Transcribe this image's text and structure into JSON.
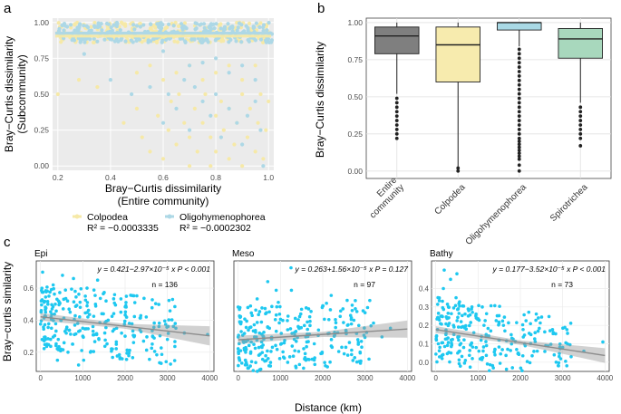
{
  "chart_data": [
    {
      "panel": "a",
      "type": "scatter",
      "xlabel": "Bray−Curtis dissimilarity",
      "xlabel2": "(Entire community)",
      "ylabel": "Bray−Curtis dissimilarity",
      "ylabel2": "(Subcommunity)",
      "xlim": [
        0.18,
        1.02
      ],
      "ylim": [
        -0.03,
        1.03
      ],
      "xticks": [
        "0.2",
        "0.4",
        "0.6",
        "0.8",
        "1.0"
      ],
      "yticks": [
        "0.00",
        "0.25",
        "0.50",
        "0.75",
        "1.00"
      ],
      "grid": true,
      "series": [
        {
          "name": "Colpodea",
          "r2": "R² = −0.0003335",
          "color": "#f6e9a7",
          "fit_y": 0.905
        },
        {
          "name": "Oligohymenophorea",
          "r2": "R² = −0.0002302",
          "color": "#add8e6",
          "fit_y": 0.925
        }
      ],
      "points": {
        "Colpodea": [
          [
            0.2,
            0.5
          ],
          [
            0.28,
            0.6
          ],
          [
            0.35,
            0.55
          ],
          [
            0.45,
            0.3
          ],
          [
            0.5,
            0.4
          ],
          [
            0.52,
            0.2
          ],
          [
            0.55,
            0.1
          ],
          [
            0.58,
            0.35
          ],
          [
            0.6,
            0.05
          ],
          [
            0.62,
            0.25
          ],
          [
            0.63,
            0.45
          ],
          [
            0.65,
            0.15
          ],
          [
            0.66,
            0.5
          ],
          [
            0.68,
            0.3
          ],
          [
            0.7,
            0.0
          ],
          [
            0.7,
            0.2
          ],
          [
            0.72,
            0.4
          ],
          [
            0.73,
            0.1
          ],
          [
            0.75,
            0.3
          ],
          [
            0.76,
            0.5
          ],
          [
            0.78,
            0.2
          ],
          [
            0.78,
            0.0
          ],
          [
            0.8,
            0.35
          ],
          [
            0.8,
            0.1
          ],
          [
            0.82,
            0.45
          ],
          [
            0.83,
            0.25
          ],
          [
            0.85,
            0.05
          ],
          [
            0.85,
            0.4
          ],
          [
            0.87,
            0.15
          ],
          [
            0.88,
            0.3
          ],
          [
            0.9,
            0.5
          ],
          [
            0.9,
            0.0
          ],
          [
            0.92,
            0.2
          ],
          [
            0.93,
            0.4
          ],
          [
            0.95,
            0.1
          ],
          [
            0.96,
            0.3
          ],
          [
            0.97,
            0.5
          ],
          [
            0.98,
            0.05
          ],
          [
            0.99,
            0.25
          ],
          [
            1.0,
            0.45
          ],
          [
            0.6,
            0.6
          ],
          [
            0.65,
            0.65
          ],
          [
            0.7,
            0.7
          ],
          [
            0.75,
            0.6
          ],
          [
            0.8,
            0.65
          ],
          [
            0.85,
            0.7
          ],
          [
            0.9,
            0.6
          ],
          [
            0.95,
            0.7
          ],
          [
            0.55,
            0.7
          ],
          [
            0.5,
            0.65
          ]
        ],
        "Oligohymenophorea": [
          [
            0.3,
            0.78
          ],
          [
            0.4,
            0.6
          ],
          [
            0.48,
            0.5
          ],
          [
            0.55,
            0.55
          ],
          [
            0.6,
            0.3
          ],
          [
            0.62,
            0.5
          ],
          [
            0.65,
            0.4
          ],
          [
            0.68,
            0.6
          ],
          [
            0.7,
            0.25
          ],
          [
            0.72,
            0.55
          ],
          [
            0.75,
            0.45
          ],
          [
            0.78,
            0.35
          ],
          [
            0.8,
            0.5
          ],
          [
            0.82,
            0.2
          ],
          [
            0.85,
            0.4
          ],
          [
            0.88,
            0.3
          ],
          [
            0.9,
            0.15
          ],
          [
            0.92,
            0.35
          ],
          [
            0.95,
            0.45
          ],
          [
            0.97,
            0.25
          ],
          [
            0.7,
            0.7
          ],
          [
            0.8,
            0.75
          ],
          [
            0.9,
            0.7
          ],
          [
            0.6,
            0.8
          ],
          [
            0.98,
            0.0
          ],
          [
            0.95,
            0.6
          ],
          [
            0.85,
            0.65
          ],
          [
            0.75,
            0.72
          ]
        ]
      }
    },
    {
      "panel": "b",
      "type": "box",
      "ylabel": "Bray−Curtis dissimilarity",
      "ylim": [
        -0.05,
        1.03
      ],
      "yticks": [
        "0.00",
        "0.25",
        "0.50",
        "0.75",
        "1.00"
      ],
      "categories": [
        "Entire community",
        "Colpodea",
        "Oligohymenophorea",
        "Spirotrichea"
      ],
      "category_labels": [
        [
          "Entire",
          "community"
        ],
        [
          "Colpodea"
        ],
        [
          "Oligohymenophorea"
        ],
        [
          "Spirotrichea"
        ]
      ],
      "boxes": [
        {
          "whisker_low": 0.52,
          "q1": 0.79,
          "median": 0.91,
          "q3": 0.97,
          "whisker_high": 1.0,
          "color": "#7f7f7f",
          "outliers": [
            0.22,
            0.25,
            0.28,
            0.31,
            0.34,
            0.37,
            0.4,
            0.43,
            0.46,
            0.49
          ]
        },
        {
          "whisker_low": 0.03,
          "q1": 0.6,
          "median": 0.85,
          "q3": 0.97,
          "whisker_high": 1.0,
          "color": "#f7ebae",
          "outliers": [
            0.0,
            0.02
          ]
        },
        {
          "whisker_low": 0.84,
          "q1": 0.95,
          "median": 1.0,
          "q3": 1.0,
          "whisker_high": 1.0,
          "color": "#a9d9e5",
          "outliers": [
            0.0,
            0.04,
            0.08,
            0.1,
            0.12,
            0.14,
            0.16,
            0.18,
            0.2,
            0.22,
            0.25,
            0.28,
            0.31,
            0.34,
            0.37,
            0.4,
            0.43,
            0.46,
            0.49,
            0.52,
            0.55,
            0.58,
            0.61,
            0.64,
            0.67,
            0.7,
            0.73,
            0.76,
            0.79,
            0.82
          ]
        },
        {
          "whisker_low": 0.46,
          "q1": 0.76,
          "median": 0.89,
          "q3": 0.96,
          "whisker_high": 1.0,
          "color": "#a8d8bd",
          "outliers": [
            0.17,
            0.22,
            0.25,
            0.28,
            0.31,
            0.34,
            0.37,
            0.4,
            0.43
          ]
        }
      ]
    },
    {
      "panel": "c",
      "type": "scatter",
      "xlabel": "Distance (km)",
      "ylabel": "Bray−curtis similarity",
      "point_color": "#1ec8f0",
      "line_color": "#8c8c8c",
      "facets": [
        {
          "label": "Epi",
          "equation": "y = 0.421−2.97×10⁻⁵ x",
          "p": "P < 0.001",
          "n": "n = 136",
          "xlim": [
            -100,
            4100
          ],
          "ylim": [
            0.08,
            0.77
          ],
          "xticks": [
            0,
            1000,
            2000,
            3000,
            4000
          ],
          "yticks": [
            0.2,
            0.4,
            0.6
          ],
          "fit": {
            "intercept": 0.421,
            "slope": -2.97e-05,
            "x0": 0,
            "x1": 4000
          },
          "band": [
            0.015,
            0.06
          ],
          "points": [
            [
              50,
              0.7
            ],
            [
              120,
              0.45
            ],
            [
              200,
              0.55
            ],
            [
              260,
              0.35
            ],
            [
              300,
              0.62
            ],
            [
              350,
              0.5
            ],
            [
              420,
              0.28
            ],
            [
              480,
              0.4
            ],
            [
              520,
              0.68
            ],
            [
              580,
              0.33
            ],
            [
              640,
              0.52
            ],
            [
              700,
              0.45
            ],
            [
              760,
              0.25
            ],
            [
              820,
              0.58
            ],
            [
              880,
              0.38
            ],
            [
              940,
              0.48
            ],
            [
              1000,
              0.3
            ],
            [
              1060,
              0.55
            ],
            [
              1120,
              0.42
            ],
            [
              1180,
              0.2
            ],
            [
              1240,
              0.36
            ],
            [
              1300,
              0.5
            ],
            [
              1380,
              0.28
            ],
            [
              1450,
              0.44
            ],
            [
              1520,
              0.32
            ],
            [
              1600,
              0.4
            ],
            [
              1700,
              0.22
            ],
            [
              1800,
              0.35
            ],
            [
              1900,
              0.45
            ],
            [
              2000,
              0.3
            ],
            [
              2100,
              0.38
            ],
            [
              2200,
              0.26
            ],
            [
              2350,
              0.34
            ],
            [
              2500,
              0.42
            ],
            [
              2650,
              0.3
            ],
            [
              2800,
              0.36
            ],
            [
              3000,
              0.28
            ],
            [
              3200,
              0.35
            ],
            [
              3400,
              0.32
            ],
            [
              3950,
              0.31
            ],
            [
              150,
              0.25
            ],
            [
              400,
              0.15
            ],
            [
              650,
              0.2
            ],
            [
              900,
              0.12
            ],
            [
              1100,
              0.6
            ],
            [
              1350,
              0.65
            ],
            [
              780,
              0.66
            ],
            [
              1550,
              0.52
            ],
            [
              250,
              0.42
            ],
            [
              1020,
              0.15
            ]
          ]
        },
        {
          "label": "Meso",
          "equation": "y = 0.263+1.56×10⁻⁵ x",
          "p": "P = 0.127",
          "n": "n = 97",
          "xlim": [
            -100,
            4100
          ],
          "ylim": [
            0.08,
            0.72
          ],
          "xticks": [
            0,
            1000,
            2000,
            3000,
            4000
          ],
          "yticks": [],
          "fit": {
            "intercept": 0.263,
            "slope": 1.56e-05,
            "x0": 0,
            "x1": 4000
          },
          "band": [
            0.015,
            0.05
          ],
          "points": [
            [
              60,
              0.2
            ],
            [
              150,
              0.3
            ],
            [
              230,
              0.45
            ],
            [
              310,
              0.25
            ],
            [
              380,
              0.35
            ],
            [
              450,
              0.5
            ],
            [
              520,
              0.18
            ],
            [
              600,
              0.28
            ],
            [
              670,
              0.42
            ],
            [
              740,
              0.33
            ],
            [
              810,
              0.22
            ],
            [
              880,
              0.38
            ],
            [
              950,
              0.48
            ],
            [
              1020,
              0.3
            ],
            [
              1100,
              0.26
            ],
            [
              1180,
              0.4
            ],
            [
              1260,
              0.55
            ],
            [
              1340,
              0.2
            ],
            [
              1420,
              0.34
            ],
            [
              1500,
              0.44
            ],
            [
              1600,
              0.28
            ],
            [
              1700,
              0.37
            ],
            [
              1800,
              0.24
            ],
            [
              1900,
              0.32
            ],
            [
              2000,
              0.46
            ],
            [
              2150,
              0.3
            ],
            [
              2300,
              0.38
            ],
            [
              2450,
              0.22
            ],
            [
              2600,
              0.35
            ],
            [
              2800,
              0.3
            ],
            [
              3000,
              0.42
            ],
            [
              3200,
              0.36
            ],
            [
              3400,
              0.28
            ],
            [
              3600,
              0.33
            ],
            [
              200,
              0.12
            ],
            [
              700,
              0.6
            ],
            [
              1250,
              0.68
            ],
            [
              1650,
              0.15
            ],
            [
              2200,
              0.52
            ],
            [
              2900,
              0.14
            ],
            [
              900,
              0.55
            ],
            [
              1450,
              0.12
            ]
          ]
        },
        {
          "label": "Bathy",
          "equation": "y = 0.177−3.52×10⁻⁵ x",
          "p": "P < 0.001",
          "n": "n = 73",
          "xlim": [
            -100,
            4100
          ],
          "ylim": [
            -0.05,
            0.55
          ],
          "xticks": [
            0,
            1000,
            2000,
            3000,
            4000
          ],
          "yticks": [
            0.0,
            0.1,
            0.2,
            0.3,
            0.4
          ],
          "fit": {
            "intercept": 0.177,
            "slope": -3.52e-05,
            "x0": 0,
            "x1": 4000
          },
          "band": [
            0.012,
            0.04
          ],
          "points": [
            [
              60,
              0.1
            ],
            [
              120,
              0.25
            ],
            [
              180,
              0.4
            ],
            [
              240,
              0.15
            ],
            [
              300,
              0.3
            ],
            [
              360,
              0.05
            ],
            [
              420,
              0.2
            ],
            [
              480,
              0.35
            ],
            [
              540,
              0.12
            ],
            [
              600,
              0.22
            ],
            [
              660,
              0.08
            ],
            [
              720,
              0.18
            ],
            [
              780,
              0.28
            ],
            [
              840,
              0.1
            ],
            [
              900,
              0.16
            ],
            [
              960,
              0.24
            ],
            [
              1020,
              0.06
            ],
            [
              1080,
              0.14
            ],
            [
              1140,
              0.2
            ],
            [
              1200,
              0.09
            ],
            [
              1300,
              0.17
            ],
            [
              1400,
              0.04
            ],
            [
              1500,
              0.12
            ],
            [
              1600,
              0.2
            ],
            [
              1700,
              0.07
            ],
            [
              1800,
              0.13
            ],
            [
              1950,
              0.05
            ],
            [
              2100,
              0.1
            ],
            [
              2250,
              0.15
            ],
            [
              2400,
              0.06
            ],
            [
              2600,
              0.09
            ],
            [
              2800,
              0.04
            ],
            [
              3000,
              0.08
            ],
            [
              3200,
              0.03
            ],
            [
              3500,
              0.06
            ],
            [
              3950,
              0.11
            ],
            [
              200,
              0.5
            ],
            [
              350,
              0.45
            ],
            [
              150,
              0.02
            ],
            [
              700,
              0.01
            ],
            [
              1100,
              0.3
            ],
            [
              500,
              0.48
            ]
          ]
        }
      ]
    }
  ],
  "labels": {
    "a": "a",
    "b": "b",
    "c": "c"
  }
}
